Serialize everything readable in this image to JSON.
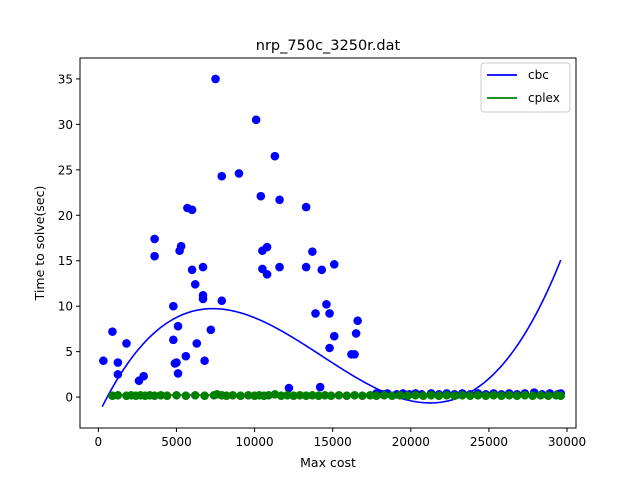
{
  "chart_data": {
    "type": "scatter",
    "title": "nrp_750c_3250r.dat",
    "xlabel": "Max cost",
    "ylabel": "Time to solve(sec)",
    "xlim": [
      -1175,
      30575
    ],
    "ylim": [
      -3.4,
      37.3
    ],
    "xticks": [
      0,
      5000,
      10000,
      15000,
      20000,
      25000,
      30000
    ],
    "yticks": [
      0,
      5,
      10,
      15,
      20,
      25,
      30,
      35
    ],
    "grid": false,
    "legend_position": "top-right",
    "series": [
      {
        "name": "cbc",
        "color": "#0000ff",
        "fit_poly_x_range": [
          250,
          29600
        ],
        "fit_poly_coefficients": [
          -1.9337,
          0.0035963,
          -3.3e-07,
          7.7e-12
        ],
        "points": [
          [
            320,
            4.0
          ],
          [
            900,
            7.2
          ],
          [
            1250,
            3.8
          ],
          [
            1250,
            2.5
          ],
          [
            1800,
            5.9
          ],
          [
            2600,
            1.8
          ],
          [
            2900,
            2.3
          ],
          [
            3600,
            15.5
          ],
          [
            3600,
            17.4
          ],
          [
            4800,
            10.0
          ],
          [
            4800,
            6.3
          ],
          [
            4900,
            3.7
          ],
          [
            5000,
            3.8
          ],
          [
            5100,
            2.6
          ],
          [
            5100,
            7.8
          ],
          [
            5200,
            16.1
          ],
          [
            5300,
            16.6
          ],
          [
            5600,
            4.5
          ],
          [
            5700,
            20.8
          ],
          [
            6000,
            20.6
          ],
          [
            6000,
            14.0
          ],
          [
            6200,
            12.4
          ],
          [
            6300,
            5.9
          ],
          [
            6700,
            14.3
          ],
          [
            6700,
            11.2
          ],
          [
            6700,
            10.8
          ],
          [
            6800,
            4.0
          ],
          [
            7200,
            7.4
          ],
          [
            7500,
            35.0
          ],
          [
            7900,
            24.3
          ],
          [
            7900,
            10.6
          ],
          [
            9000,
            24.6
          ],
          [
            10100,
            30.5
          ],
          [
            10400,
            22.1
          ],
          [
            10500,
            16.1
          ],
          [
            10500,
            14.1
          ],
          [
            10800,
            16.5
          ],
          [
            10800,
            13.5
          ],
          [
            11300,
            26.5
          ],
          [
            11600,
            21.7
          ],
          [
            11600,
            14.3
          ],
          [
            12200,
            1.0
          ],
          [
            13300,
            20.9
          ],
          [
            13300,
            14.3
          ],
          [
            13700,
            16.0
          ],
          [
            13900,
            9.2
          ],
          [
            14200,
            1.1
          ],
          [
            14300,
            14.0
          ],
          [
            14600,
            10.2
          ],
          [
            14800,
            9.2
          ],
          [
            14800,
            5.4
          ],
          [
            15100,
            14.6
          ],
          [
            15100,
            6.7
          ],
          [
            16200,
            4.7
          ],
          [
            16400,
            4.7
          ],
          [
            16500,
            7.0
          ],
          [
            16600,
            8.4
          ],
          [
            17800,
            0.4
          ],
          [
            18200,
            0.3
          ],
          [
            18500,
            0.4
          ],
          [
            19100,
            0.3
          ],
          [
            19500,
            0.4
          ],
          [
            19900,
            0.3
          ],
          [
            20300,
            0.4
          ],
          [
            20700,
            0.3
          ],
          [
            21300,
            0.4
          ],
          [
            21800,
            0.3
          ],
          [
            22300,
            0.4
          ],
          [
            22800,
            0.3
          ],
          [
            23300,
            0.4
          ],
          [
            23800,
            0.3
          ],
          [
            24300,
            0.4
          ],
          [
            24800,
            0.3
          ],
          [
            25300,
            0.4
          ],
          [
            25800,
            0.3
          ],
          [
            26300,
            0.4
          ],
          [
            26800,
            0.3
          ],
          [
            27300,
            0.4
          ],
          [
            27900,
            0.5
          ],
          [
            28400,
            0.3
          ],
          [
            28900,
            0.4
          ],
          [
            29400,
            0.3
          ],
          [
            29600,
            0.4
          ]
        ]
      },
      {
        "name": "cplex",
        "color": "#008000",
        "fit_poly_x_range": [
          900,
          29600
        ],
        "fit_poly_coefficients": [
          0.22,
          0,
          0,
          0
        ],
        "points": [
          [
            900,
            0.15
          ],
          [
            1250,
            0.2
          ],
          [
            1800,
            0.15
          ],
          [
            2100,
            0.2
          ],
          [
            2400,
            0.15
          ],
          [
            2700,
            0.2
          ],
          [
            3000,
            0.15
          ],
          [
            3300,
            0.2
          ],
          [
            3600,
            0.15
          ],
          [
            4000,
            0.2
          ],
          [
            4400,
            0.15
          ],
          [
            5000,
            0.2
          ],
          [
            5600,
            0.15
          ],
          [
            6200,
            0.2
          ],
          [
            6800,
            0.15
          ],
          [
            7400,
            0.2
          ],
          [
            7600,
            0.3
          ],
          [
            7900,
            0.2
          ],
          [
            8200,
            0.15
          ],
          [
            8600,
            0.2
          ],
          [
            9100,
            0.15
          ],
          [
            9600,
            0.2
          ],
          [
            10000,
            0.15
          ],
          [
            10300,
            0.2
          ],
          [
            10600,
            0.15
          ],
          [
            10900,
            0.2
          ],
          [
            11300,
            0.3
          ],
          [
            11700,
            0.15
          ],
          [
            12100,
            0.2
          ],
          [
            12500,
            0.15
          ],
          [
            12900,
            0.2
          ],
          [
            13300,
            0.15
          ],
          [
            13700,
            0.2
          ],
          [
            14100,
            0.15
          ],
          [
            14500,
            0.2
          ],
          [
            14900,
            0.15
          ],
          [
            15400,
            0.2
          ],
          [
            15900,
            0.15
          ],
          [
            16400,
            0.2
          ],
          [
            16900,
            0.15
          ],
          [
            17400,
            0.2
          ],
          [
            17800,
            0.15
          ],
          [
            18300,
            0.2
          ],
          [
            18800,
            0.15
          ],
          [
            19300,
            0.2
          ],
          [
            19800,
            0.15
          ],
          [
            20300,
            0.2
          ],
          [
            20800,
            0.15
          ],
          [
            21300,
            0.2
          ],
          [
            21800,
            0.15
          ],
          [
            22300,
            0.2
          ],
          [
            22800,
            0.15
          ],
          [
            23300,
            0.2
          ],
          [
            23800,
            0.15
          ],
          [
            24300,
            0.2
          ],
          [
            24800,
            0.15
          ],
          [
            25300,
            0.2
          ],
          [
            25800,
            0.15
          ],
          [
            26300,
            0.2
          ],
          [
            26800,
            0.15
          ],
          [
            27300,
            0.2
          ],
          [
            27800,
            0.15
          ],
          [
            28300,
            0.2
          ],
          [
            28800,
            0.15
          ],
          [
            29300,
            0.2
          ],
          [
            29600,
            0.15
          ]
        ]
      }
    ]
  }
}
